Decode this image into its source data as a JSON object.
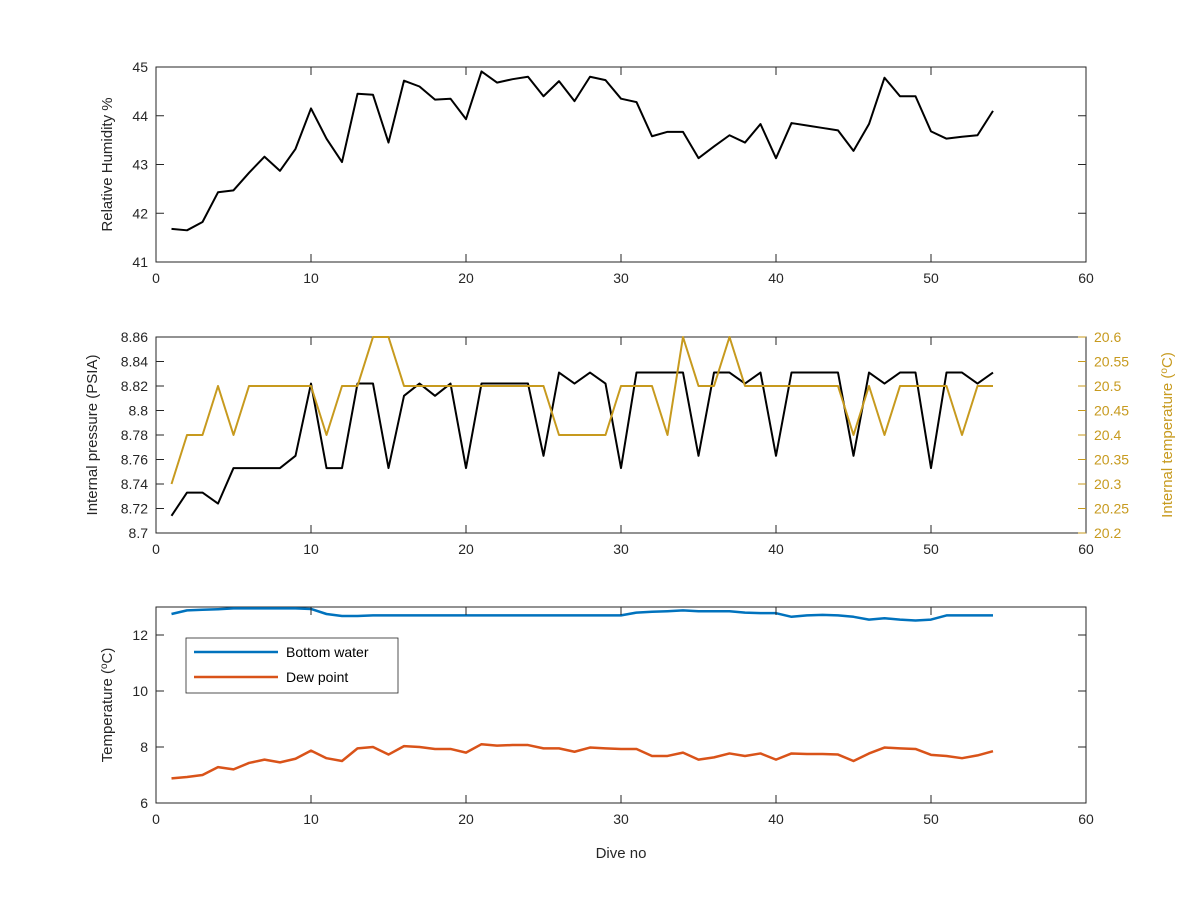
{
  "chart_data": [
    {
      "type": "line",
      "title": "",
      "xlabel": "",
      "ylabel": "Relative Humidity %",
      "xlim": [
        0,
        60
      ],
      "ylim": [
        41,
        45
      ],
      "xticks": [
        0,
        10,
        20,
        30,
        40,
        50,
        60
      ],
      "yticks": [
        41,
        42,
        43,
        44,
        45
      ],
      "grid": false,
      "x": [
        1,
        2,
        3,
        4,
        5,
        6,
        7,
        8,
        9,
        10,
        11,
        12,
        13,
        14,
        15,
        16,
        17,
        18,
        19,
        20,
        21,
        22,
        23,
        24,
        25,
        26,
        27,
        28,
        29,
        30,
        31,
        32,
        33,
        34,
        35,
        36,
        37,
        38,
        39,
        40,
        41,
        42,
        43,
        44,
        45,
        46,
        47,
        48,
        49,
        50,
        51,
        52,
        53,
        54
      ],
      "series": [
        {
          "color": "#000000",
          "values": [
            41.68,
            41.65,
            41.82,
            42.43,
            42.47,
            42.83,
            43.16,
            42.87,
            43.32,
            44.15,
            43.53,
            43.05,
            44.45,
            44.43,
            43.45,
            44.72,
            44.6,
            44.33,
            44.35,
            43.93,
            44.91,
            44.68,
            44.75,
            44.8,
            44.4,
            44.71,
            44.3,
            44.8,
            44.73,
            44.35,
            44.28,
            43.58,
            43.67,
            43.67,
            43.13,
            43.37,
            43.6,
            43.45,
            43.83,
            43.13,
            43.85,
            43.8,
            43.75,
            43.7,
            43.28,
            43.83,
            44.78,
            44.4,
            44.4,
            43.68,
            43.53,
            43.57,
            43.6,
            44.1
          ]
        }
      ]
    },
    {
      "type": "line",
      "title": "",
      "xlabel": "",
      "ylabel": "Internal pressure (PSIA)",
      "y2label_parts": {
        "before": "Internal temperature (",
        "sup": "o",
        "after": "C)"
      },
      "xlim": [
        0,
        60
      ],
      "ylim": [
        8.7,
        8.86
      ],
      "y2lim": [
        20.2,
        20.6
      ],
      "xticks": [
        0,
        10,
        20,
        30,
        40,
        50,
        60
      ],
      "yticks": [
        8.7,
        8.72,
        8.74,
        8.76,
        8.78,
        8.8,
        8.82,
        8.84,
        8.86
      ],
      "y2ticks": [
        20.2,
        20.25,
        20.3,
        20.35,
        20.4,
        20.45,
        20.5,
        20.55,
        20.6
      ],
      "grid": false,
      "x": [
        1,
        2,
        3,
        4,
        5,
        6,
        7,
        8,
        9,
        10,
        11,
        12,
        13,
        14,
        15,
        16,
        17,
        18,
        19,
        20,
        21,
        22,
        23,
        24,
        25,
        26,
        27,
        28,
        29,
        30,
        31,
        32,
        33,
        34,
        35,
        36,
        37,
        38,
        39,
        40,
        41,
        42,
        43,
        44,
        45,
        46,
        47,
        48,
        49,
        50,
        51,
        52,
        53,
        54
      ],
      "series": [
        {
          "axis": "left",
          "color": "#000000",
          "values": [
            8.714,
            8.733,
            8.733,
            8.724,
            8.753,
            8.753,
            8.753,
            8.753,
            8.763,
            8.822,
            8.753,
            8.753,
            8.822,
            8.822,
            8.753,
            8.812,
            8.822,
            8.812,
            8.822,
            8.753,
            8.822,
            8.822,
            8.822,
            8.822,
            8.763,
            8.831,
            8.822,
            8.831,
            8.822,
            8.753,
            8.831,
            8.831,
            8.831,
            8.831,
            8.763,
            8.831,
            8.831,
            8.822,
            8.831,
            8.763,
            8.831,
            8.831,
            8.831,
            8.831,
            8.763,
            8.831,
            8.822,
            8.831,
            8.831,
            8.753,
            8.831,
            8.831,
            8.822,
            8.831
          ]
        },
        {
          "axis": "right",
          "color": "#C79A1E",
          "values": [
            20.3,
            20.4,
            20.4,
            20.5,
            20.4,
            20.5,
            20.5,
            20.5,
            20.5,
            20.5,
            20.4,
            20.5,
            20.5,
            20.6,
            20.6,
            20.5,
            20.5,
            20.5,
            20.5,
            20.5,
            20.5,
            20.5,
            20.5,
            20.5,
            20.5,
            20.4,
            20.4,
            20.4,
            20.4,
            20.5,
            20.5,
            20.5,
            20.4,
            20.6,
            20.5,
            20.5,
            20.6,
            20.5,
            20.5,
            20.5,
            20.5,
            20.5,
            20.5,
            20.5,
            20.4,
            20.5,
            20.4,
            20.5,
            20.5,
            20.5,
            20.5,
            20.4,
            20.5,
            20.5
          ]
        }
      ]
    },
    {
      "type": "line",
      "title": "",
      "xlabel": "Dive no",
      "ylabel_parts": {
        "before": "Temperature (",
        "sup": "o",
        "after": "C)"
      },
      "xlim": [
        0,
        60
      ],
      "ylim": [
        6,
        13
      ],
      "xticks": [
        0,
        10,
        20,
        30,
        40,
        50,
        60
      ],
      "yticks": [
        6,
        8,
        10,
        12
      ],
      "grid": false,
      "legend": "top-left",
      "x": [
        1,
        2,
        3,
        4,
        5,
        6,
        7,
        8,
        9,
        10,
        11,
        12,
        13,
        14,
        15,
        16,
        17,
        18,
        19,
        20,
        21,
        22,
        23,
        24,
        25,
        26,
        27,
        28,
        29,
        30,
        31,
        32,
        33,
        34,
        35,
        36,
        37,
        38,
        39,
        40,
        41,
        42,
        43,
        44,
        45,
        46,
        47,
        48,
        49,
        50,
        51,
        52,
        53,
        54
      ],
      "series": [
        {
          "name": "Bottom water",
          "color": "#0072BD",
          "values": [
            12.75,
            12.88,
            12.9,
            12.92,
            12.95,
            12.95,
            12.95,
            12.95,
            12.95,
            12.93,
            12.75,
            12.68,
            12.68,
            12.7,
            12.7,
            12.7,
            12.7,
            12.7,
            12.7,
            12.7,
            12.7,
            12.7,
            12.7,
            12.7,
            12.7,
            12.7,
            12.7,
            12.7,
            12.7,
            12.7,
            12.8,
            12.83,
            12.85,
            12.88,
            12.85,
            12.85,
            12.85,
            12.8,
            12.78,
            12.78,
            12.65,
            12.7,
            12.72,
            12.7,
            12.65,
            12.55,
            12.6,
            12.55,
            12.52,
            12.55,
            12.7,
            12.7,
            12.7,
            12.7
          ]
        },
        {
          "name": "Dew point",
          "color": "#D95319",
          "values": [
            6.88,
            6.93,
            7.0,
            7.28,
            7.2,
            7.43,
            7.55,
            7.45,
            7.58,
            7.87,
            7.6,
            7.5,
            7.95,
            8.0,
            7.73,
            8.03,
            8.0,
            7.93,
            7.93,
            7.8,
            8.1,
            8.05,
            8.07,
            8.07,
            7.95,
            7.95,
            7.83,
            7.98,
            7.95,
            7.93,
            7.93,
            7.68,
            7.68,
            7.8,
            7.55,
            7.63,
            7.77,
            7.68,
            7.77,
            7.55,
            7.77,
            7.75,
            7.75,
            7.73,
            7.5,
            7.77,
            7.98,
            7.95,
            7.93,
            7.72,
            7.68,
            7.6,
            7.7,
            7.85
          ]
        }
      ]
    }
  ]
}
